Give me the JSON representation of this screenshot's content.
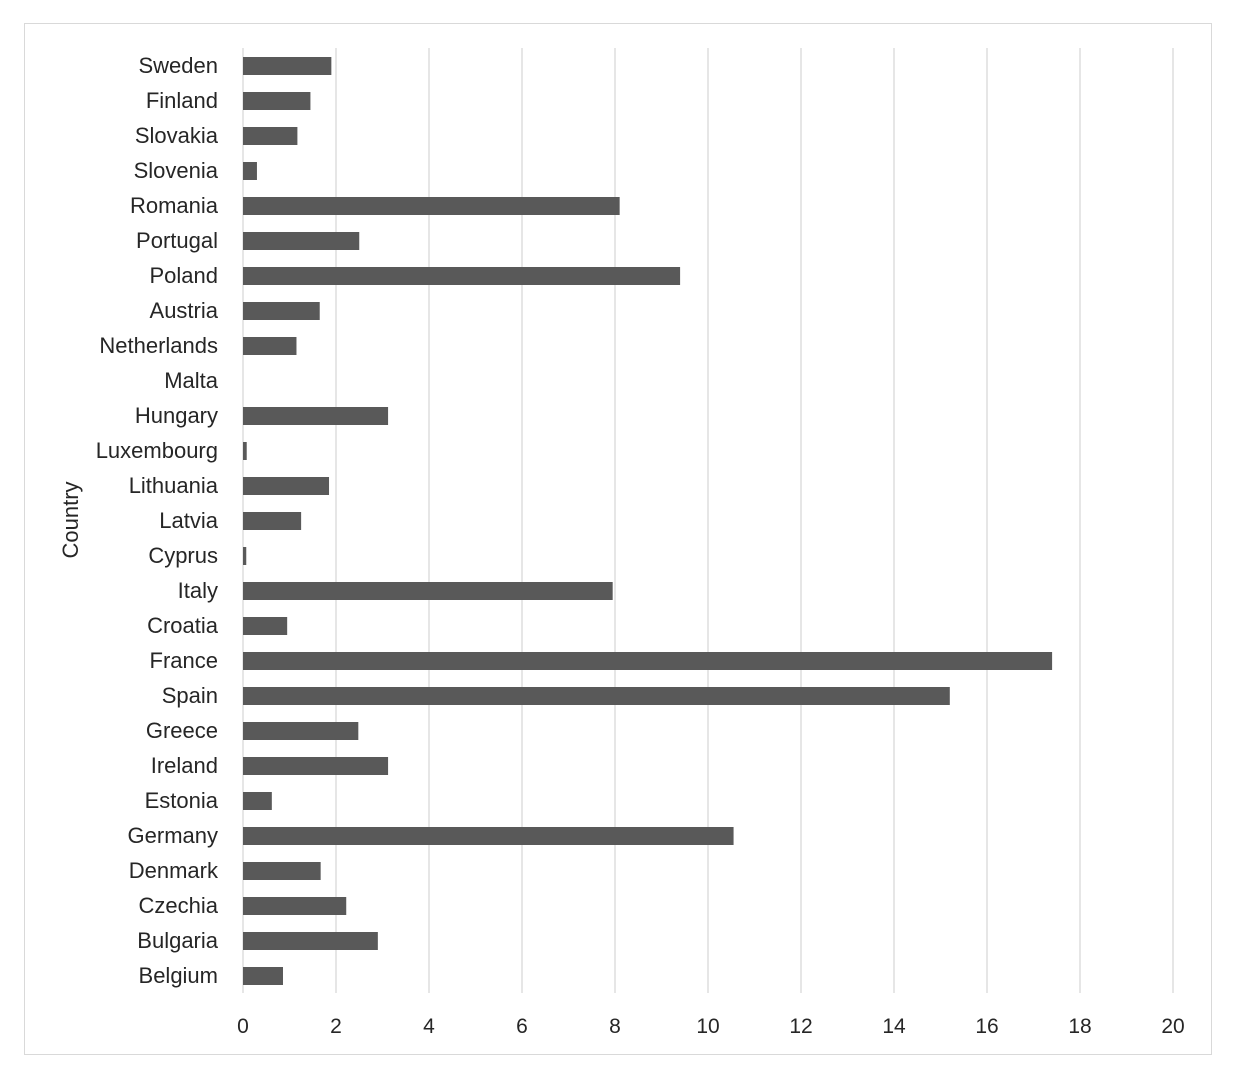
{
  "chart_data": {
    "type": "bar",
    "orientation": "horizontal",
    "title": "",
    "xlabel": "",
    "ylabel": "Country",
    "xlim": [
      0,
      20
    ],
    "xticks": [
      0,
      2,
      4,
      6,
      8,
      10,
      12,
      14,
      16,
      18,
      20
    ],
    "grid": "vertical gridlines",
    "legend": "none",
    "bar_color": "#595959",
    "grid_color": "#d9d9d9",
    "categories": [
      "Sweden",
      "Finland",
      "Slovakia",
      "Slovenia",
      "Romania",
      "Portugal",
      "Poland",
      "Austria",
      "Netherlands",
      "Malta",
      "Hungary",
      "Luxembourg",
      "Lithuania",
      "Latvia",
      "Cyprus",
      "Italy",
      "Croatia",
      "France",
      "Spain",
      "Greece",
      "Ireland",
      "Estonia",
      "Germany",
      "Denmark",
      "Czechia",
      "Bulgaria",
      "Belgium"
    ],
    "values": [
      1.9,
      1.45,
      1.17,
      0.3,
      8.1,
      2.5,
      9.4,
      1.65,
      1.15,
      0.0,
      3.12,
      0.08,
      1.85,
      1.25,
      0.07,
      7.95,
      0.95,
      17.4,
      15.2,
      2.48,
      3.12,
      0.62,
      10.55,
      1.67,
      2.22,
      2.9,
      0.86
    ]
  }
}
